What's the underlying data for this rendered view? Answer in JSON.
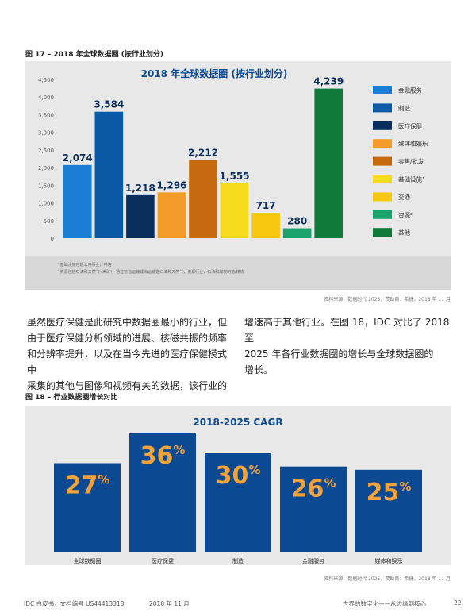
{
  "figure17": {
    "caption": "图 17 – 2018 年全球数据圈 (按行业划分)",
    "notes": [
      "¹ 基础设施包括公用事业，电信",
      "² 资源包括石油和天然气 (采矿)，通过管道运输或海运输送石油和天然气，资源行业，石油和煤炭制造/精炼"
    ],
    "source": "资料来源：数据时代 2025，赞助商：希捷，2018 年 11 月",
    "chart_data": {
      "type": "bar",
      "title": "2018 年全球数据圈 (按行业划分)",
      "categories": [
        "金融服务",
        "制造",
        "医疗保健",
        "媒体和娱乐",
        "零售/批发",
        "基础设施¹",
        "交通",
        "资源²",
        "其他"
      ],
      "values": [
        2074,
        3584,
        1218,
        1296,
        2212,
        1555,
        717,
        280,
        4239
      ],
      "value_labels": [
        "2,074",
        "3,584",
        "1,218",
        "1,296",
        "2,212",
        "1,555",
        "717",
        "280",
        "4,239"
      ],
      "colors": [
        "#1a7fd4",
        "#0c5aa6",
        "#0b2f5c",
        "#f39c2a",
        "#c56a0e",
        "#f7dc1e",
        "#f5c70f",
        "#1aa36c",
        "#0f7a3a"
      ],
      "ylim": [
        0,
        4500
      ],
      "yticks": [
        0,
        500,
        1000,
        1500,
        2000,
        2500,
        3000,
        3500,
        4000,
        4500
      ],
      "ytick_labels": [
        "0",
        "500",
        "1,000",
        "1,500",
        "2,000",
        "2,500",
        "3,000",
        "3,500",
        "4,000",
        "4,500"
      ],
      "legend": "right",
      "grid": false
    }
  },
  "body_text": {
    "left": [
      "虽然医疗保健是此研究中数据圈最小的行业，但",
      "由于医疗保健分析领域的进展、核磁共振的频率",
      "和分辨率提升，以及在当今先进的医疗保健模式中",
      "采集的其他与图像和视频有关的数据，该行业的"
    ],
    "right": [
      "增速高于其他行业。在图 18，IDC 对比了 2018 至",
      "2025 年各行业数据圈的增长与全球数据圈的",
      "增长。"
    ]
  },
  "figure18": {
    "caption": "图 18 – 行业数据圈增长对比",
    "source": "资料来源：数据时代 2025，赞助商：希捷，2018 年 11 月",
    "chart_data": {
      "type": "bar",
      "title": "2018-2025 CAGR",
      "categories": [
        "全球数据圈",
        "医疗保健",
        "制造",
        "金融服务",
        "媒体和娱乐"
      ],
      "values": [
        27,
        36,
        30,
        26,
        25
      ],
      "value_labels": [
        "27",
        "36",
        "30",
        "26",
        "25"
      ],
      "unit": "%",
      "color": "#0b4a93",
      "label_color": "#f2a23a",
      "ylim": [
        0,
        36
      ],
      "legend": "none",
      "grid": false
    }
  },
  "footer": {
    "left": "IDC 白皮书，文档编号 US44413318",
    "date": "2018 年 11 月",
    "right": "世界的数字化——从边缘到核心",
    "page": "22"
  }
}
